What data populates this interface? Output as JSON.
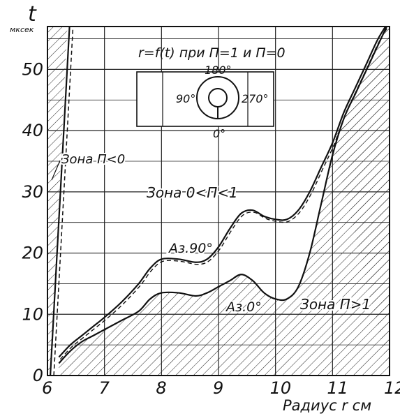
{
  "chart_data": {
    "type": "line",
    "title": "r=f(t) при П=1 и П=0",
    "ylabel_symbol": "t",
    "ylabel_unit": "мксек",
    "xlabel": "Радиус r см",
    "xlim": [
      6,
      12
    ],
    "ylim": [
      0,
      57
    ],
    "x_ticks": [
      "6",
      "7",
      "8",
      "9",
      "10",
      "11",
      "12"
    ],
    "y_ticks": [
      "0",
      "10",
      "20",
      "30",
      "40",
      "50"
    ],
    "grid": true,
    "zones": {
      "left": "Зона П<0",
      "middle": "Зона 0<П<1",
      "right": "Зона П>1"
    },
    "series": [
      {
        "name": "Аз. 90°",
        "x": [
          6.2,
          6.4,
          6.6,
          6.8,
          7.0,
          7.3,
          7.6,
          7.8,
          8.0,
          8.3,
          8.6,
          8.8,
          9.0,
          9.2,
          9.4,
          9.6,
          9.8,
          10.0,
          10.2,
          10.4,
          10.6,
          10.8,
          11.0,
          11.2,
          11.4,
          11.6,
          11.8,
          12.0
        ],
        "y": [
          3,
          5,
          6.5,
          8,
          9.5,
          12,
          15,
          17.5,
          19,
          19,
          18.5,
          19,
          21,
          24,
          26.5,
          27,
          26,
          25.5,
          25.5,
          27,
          30,
          34,
          38,
          43,
          47,
          51,
          55,
          58
        ]
      },
      {
        "name": "Аз. 0°",
        "x": [
          6.2,
          6.4,
          6.6,
          6.8,
          7.0,
          7.3,
          7.6,
          7.8,
          8.0,
          8.3,
          8.6,
          8.8,
          9.0,
          9.2,
          9.4,
          9.6,
          9.8,
          10.0,
          10.2,
          10.4,
          10.6,
          10.8,
          11.0,
          11.2,
          11.4,
          11.6,
          11.8,
          12.0
        ],
        "y": [
          2,
          4,
          5.5,
          6.5,
          7.5,
          9,
          10.5,
          12.5,
          13.5,
          13.5,
          13,
          13.5,
          14.5,
          15.5,
          16.5,
          15.5,
          13.5,
          12.5,
          12.5,
          14.5,
          20,
          28,
          36,
          42,
          46,
          50,
          54,
          58
        ]
      }
    ],
    "series_labels": [
      "Аз.90°",
      "Аз.0°"
    ],
    "boundary_left_x": [
      6.05,
      6.35
    ],
    "inset": {
      "angles": [
        "180°",
        "90°",
        "270°",
        "0°"
      ]
    }
  }
}
